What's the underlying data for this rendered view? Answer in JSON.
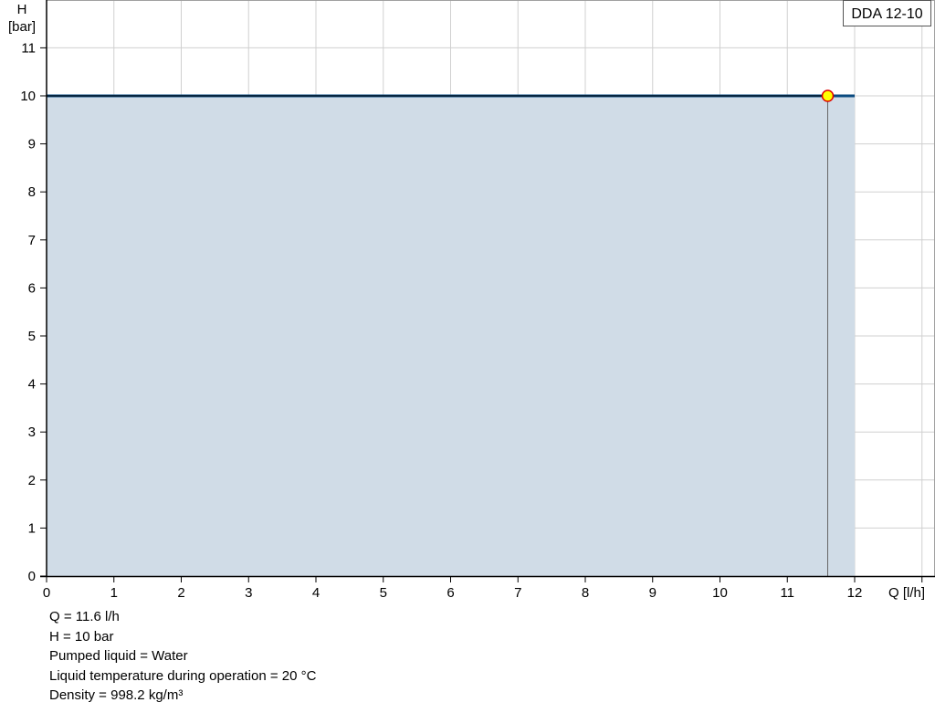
{
  "chart_data": {
    "type": "area",
    "title": "",
    "xlabel": "Q [l/h]",
    "ylabel_line1": "H",
    "ylabel_line2": "[bar]",
    "xlim": [
      0,
      13.2
    ],
    "ylim": [
      0,
      12
    ],
    "x_ticks": [
      0,
      1,
      2,
      3,
      4,
      5,
      6,
      7,
      8,
      9,
      10,
      11,
      12
    ],
    "y_ticks": [
      0,
      1,
      2,
      3,
      4,
      5,
      6,
      7,
      8,
      9,
      10,
      11
    ],
    "grid": true,
    "legend": {
      "label": "DDA 12-10",
      "placement": "top-right"
    },
    "series": [
      {
        "name": "DDA 12-10",
        "x": [
          0,
          12
        ],
        "y": [
          10,
          10
        ],
        "color": "#0a4a7f",
        "fill": "#d0dce7"
      }
    ],
    "duty_point": {
      "x": 11.6,
      "y": 10,
      "fill": "#ffff00",
      "stroke": "#e00000"
    }
  },
  "info": [
    "Q = 11.6 l/h",
    "H = 10 bar",
    "Pumped liquid = Water",
    "Liquid temperature during operation = 20 °C",
    "Density = 998.2 kg/m³"
  ]
}
